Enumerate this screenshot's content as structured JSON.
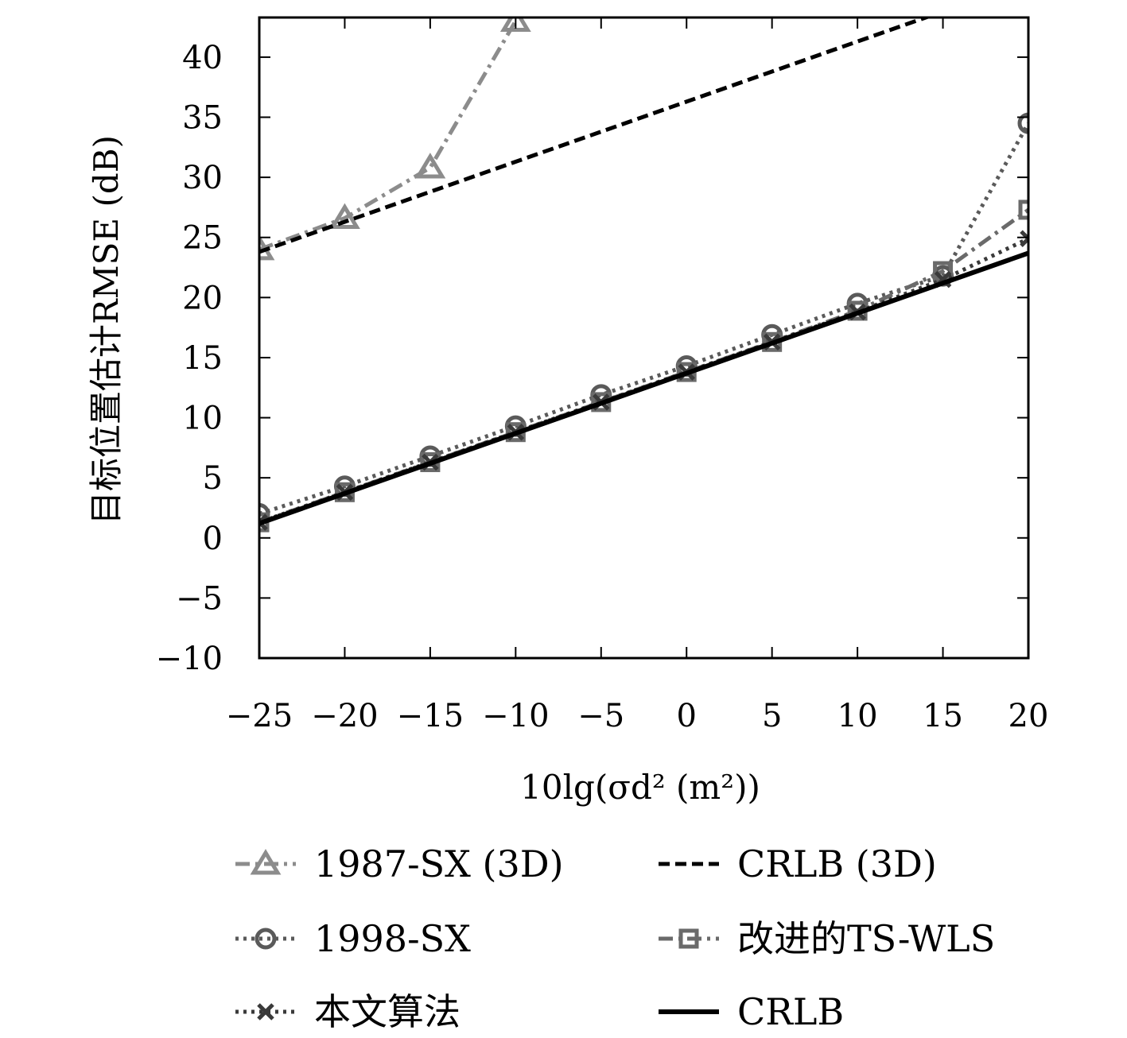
{
  "chart_data": {
    "type": "line",
    "xlabel": "10lg(σd² (m²))",
    "ylabel": "目标位置估计RMSE (dB)",
    "xlim": [
      -25,
      20
    ],
    "ylim": [
      -10,
      43.3
    ],
    "xticks": [
      -25,
      -20,
      -15,
      -10,
      -5,
      0,
      5,
      10,
      15,
      20
    ],
    "xtick_labels": [
      "−25",
      "−20",
      "−15",
      "−10",
      "−5",
      "0",
      "5",
      "10",
      "15",
      "20"
    ],
    "yticks": [
      -10,
      -5,
      0,
      5,
      10,
      15,
      20,
      25,
      30,
      35,
      40
    ],
    "ytick_labels": [
      "−10",
      "−5",
      "0",
      "5",
      "10",
      "15",
      "20",
      "25",
      "30",
      "35",
      "40"
    ],
    "grid": false,
    "legend_position": "bottom",
    "series": [
      {
        "name": "1987-SX (3D)",
        "x": [
          -25,
          -20,
          -15,
          -10
        ],
        "y": [
          24.0,
          26.6,
          30.8,
          43.0
        ],
        "color": "#8c8c8c",
        "dash": "dashdot",
        "marker": "triangle"
      },
      {
        "name": "CRLB (3D)",
        "x": [
          -25,
          -20,
          -15,
          -10,
          -5,
          0,
          5,
          10,
          15
        ],
        "y": [
          23.8,
          26.3,
          28.8,
          31.3,
          33.8,
          36.3,
          38.8,
          41.3,
          43.8
        ],
        "color": "#000000",
        "dash": "dashed",
        "marker": "none"
      },
      {
        "name": "1998-SX",
        "x": [
          -25,
          -20,
          -15,
          -10,
          -5,
          0,
          5,
          10,
          15,
          20
        ],
        "y": [
          2.0,
          4.3,
          6.8,
          9.3,
          11.9,
          14.3,
          16.9,
          19.5,
          21.8,
          34.5
        ],
        "color": "#5a5a5a",
        "dash": "dotted",
        "marker": "circle"
      },
      {
        "name": "改进的TS-WLS",
        "x": [
          -25,
          -20,
          -15,
          -10,
          -5,
          0,
          5,
          10,
          15,
          20
        ],
        "y": [
          1.3,
          3.8,
          6.3,
          8.8,
          11.3,
          13.8,
          16.3,
          18.9,
          22.2,
          27.3
        ],
        "color": "#6a6a6a",
        "dash": "dashdot",
        "marker": "square"
      },
      {
        "name": "本文算法",
        "x": [
          -25,
          -20,
          -15,
          -10,
          -5,
          0,
          5,
          10,
          15,
          20
        ],
        "y": [
          1.3,
          3.8,
          6.3,
          8.8,
          11.3,
          13.8,
          16.3,
          18.8,
          21.5,
          24.9
        ],
        "color": "#3a3a3a",
        "dash": "dotted",
        "marker": "x"
      },
      {
        "name": "CRLB",
        "x": [
          -25,
          -20,
          -15,
          -10,
          -5,
          0,
          5,
          10,
          15,
          20
        ],
        "y": [
          1.2,
          3.7,
          6.2,
          8.7,
          11.2,
          13.7,
          16.2,
          18.7,
          21.2,
          23.7
        ],
        "color": "#000000",
        "dash": "solid",
        "marker": "none"
      }
    ]
  }
}
